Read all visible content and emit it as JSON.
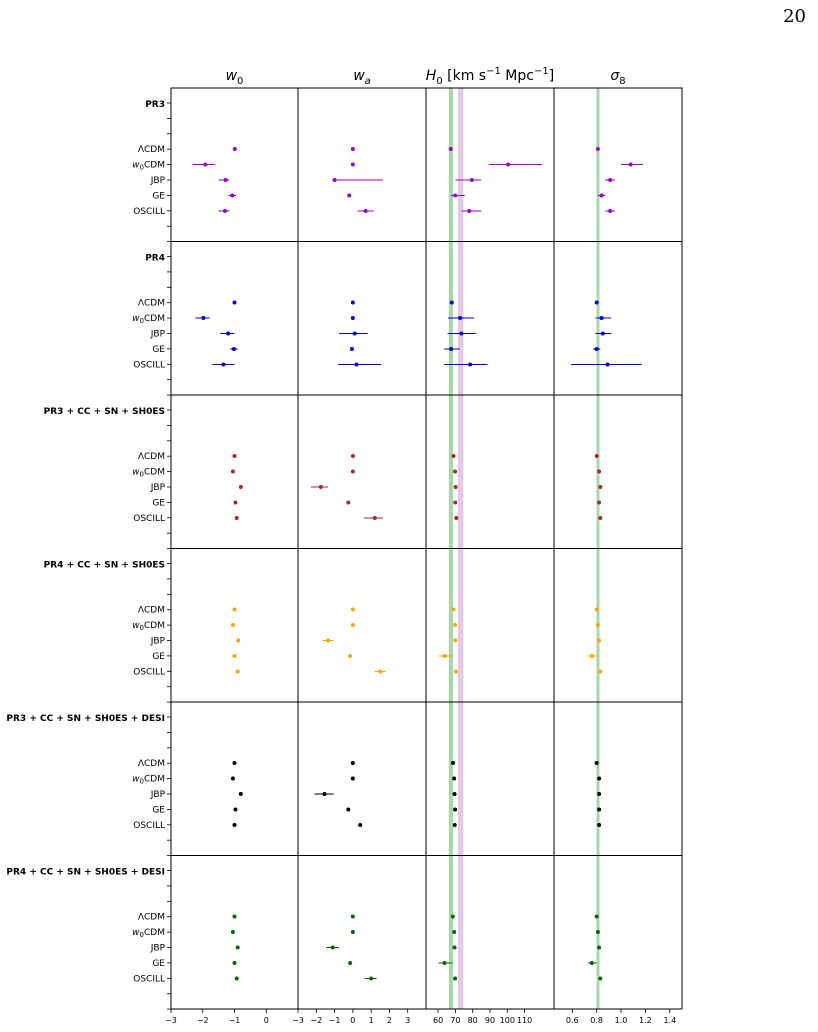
{
  "page_number": "20",
  "chart_data": {
    "type": "scatter",
    "subtype": "forest-plot with horizontal error bars",
    "columns": [
      {
        "key": "w0",
        "title": "w_0",
        "xlim": [
          -3,
          1
        ],
        "ticks": [
          -3,
          -2,
          -1,
          0
        ],
        "tick_labels": [
          "-3",
          "-2",
          "-1",
          "0"
        ]
      },
      {
        "key": "wa",
        "title": "w_a",
        "xlim": [
          -3,
          4
        ],
        "ticks": [
          -3,
          -2,
          -1,
          0,
          1,
          2,
          3
        ],
        "tick_labels": [
          "-3",
          "-2",
          "-1",
          "0",
          "1",
          "2",
          "3"
        ]
      },
      {
        "key": "H0",
        "title": "H_0 [km s^-1 Mpc^-1]",
        "xlim": [
          53,
          127
        ],
        "ticks": [
          60,
          70,
          80,
          90,
          100,
          110
        ],
        "tick_labels": [
          "60",
          "70",
          "80",
          "90",
          "100",
          "110"
        ],
        "bands": [
          {
            "center": 67.4,
            "half_width": 1.2,
            "color": "#9fd49f"
          },
          {
            "center": 73.0,
            "half_width": 1.6,
            "color": "#e2c2e6"
          }
        ]
      },
      {
        "key": "sigma8",
        "title": "σ_8",
        "xlim": [
          0.45,
          1.5
        ],
        "ticks": [
          0.6,
          0.8,
          1.0,
          1.2,
          1.4
        ],
        "tick_labels": [
          "0.6",
          "0.8",
          "1.0",
          "1.2",
          "1.4"
        ],
        "bands": [
          {
            "center": 0.811,
            "half_width": 0.012,
            "color": "#9fd49f"
          }
        ]
      }
    ],
    "model_labels": [
      "ΛCDM",
      "w0CDM",
      "JBP",
      "GE",
      "OSCILL"
    ],
    "groups": [
      {
        "name": "PR3",
        "color": "#9400d3",
        "values": [
          {
            "model": "ΛCDM",
            "w0": [
              -0.99,
              0,
              0
            ],
            "wa": [
              0,
              0,
              0
            ],
            "H0": [
              67.3,
              0.5,
              0.5
            ],
            "sigma8": [
              0.81,
              0.01,
              0.01
            ]
          },
          {
            "model": "w0CDM",
            "w0": [
              -1.92,
              0.4,
              0.3
            ],
            "wa": [
              0,
              0,
              0
            ],
            "H0": [
              100.5,
              11,
              19.5
            ],
            "sigma8": [
              1.08,
              0.08,
              0.1
            ]
          },
          {
            "model": "JBP",
            "w0": [
              -1.28,
              0.22,
              0.12
            ],
            "wa": [
              -1.0,
              0,
              2.65
            ],
            "H0": [
              79.5,
              9.5,
              5.5
            ],
            "sigma8": [
              0.91,
              0.04,
              0.04
            ]
          },
          {
            "model": "GE",
            "w0": [
              -1.07,
              0.12,
              0.12
            ],
            "wa": [
              -0.2,
              0,
              0
            ],
            "H0": [
              69.9,
              2.5,
              5.5
            ],
            "sigma8": [
              0.84,
              0.03,
              0.03
            ]
          },
          {
            "model": "OSCILL",
            "w0": [
              -1.3,
              0.2,
              0.15
            ],
            "wa": [
              0.7,
              0.45,
              0.45
            ],
            "H0": [
              78.0,
              4.5,
              7.0
            ],
            "sigma8": [
              0.91,
              0.04,
              0.04
            ]
          }
        ]
      },
      {
        "name": "PR4",
        "color": "#0000cd",
        "values": [
          {
            "model": "ΛCDM",
            "w0": [
              -1.0,
              0,
              0
            ],
            "wa": [
              0,
              0,
              0
            ],
            "H0": [
              67.9,
              0.5,
              0.5
            ],
            "sigma8": [
              0.8,
              0.01,
              0.01
            ]
          },
          {
            "model": "w0CDM",
            "w0": [
              -1.98,
              0.25,
              0.2
            ],
            "wa": [
              0,
              0,
              0
            ],
            "H0": [
              72.7,
              7.0,
              8.0
            ],
            "sigma8": [
              0.84,
              0.05,
              0.08
            ]
          },
          {
            "model": "JBP",
            "w0": [
              -1.2,
              0.25,
              0.2
            ],
            "wa": [
              0.1,
              0.85,
              0.7
            ],
            "H0": [
              73.5,
              8.0,
              8.5
            ],
            "sigma8": [
              0.85,
              0.06,
              0.07
            ]
          },
          {
            "model": "GE",
            "w0": [
              -1.02,
              0.12,
              0.12
            ],
            "wa": [
              -0.05,
              0,
              0
            ],
            "H0": [
              67.5,
              4.0,
              5.0
            ],
            "sigma8": [
              0.8,
              0.03,
              0.03
            ]
          },
          {
            "model": "OSCILL",
            "w0": [
              -1.35,
              0.35,
              0.35
            ],
            "wa": [
              0.2,
              1.0,
              1.35
            ],
            "H0": [
              78.5,
              15.0,
              10.0
            ],
            "sigma8": [
              0.89,
              0.3,
              0.28
            ]
          }
        ]
      },
      {
        "name": "PR3 + CC + SN + SH0ES",
        "color": "#a52a2a",
        "values": [
          {
            "model": "ΛCDM",
            "w0": [
              -1.0,
              0,
              0
            ],
            "wa": [
              0,
              0,
              0
            ],
            "H0": [
              68.9,
              0,
              0
            ],
            "sigma8": [
              0.8,
              0,
              0
            ]
          },
          {
            "model": "w0CDM",
            "w0": [
              -1.05,
              0,
              0
            ],
            "wa": [
              0,
              0,
              0
            ],
            "H0": [
              69.8,
              0,
              0
            ],
            "sigma8": [
              0.82,
              0,
              0
            ]
          },
          {
            "model": "JBP",
            "w0": [
              -0.8,
              0,
              0
            ],
            "wa": [
              -1.75,
              0.55,
              0.4
            ],
            "H0": [
              70.1,
              0,
              0
            ],
            "sigma8": [
              0.83,
              0,
              0
            ]
          },
          {
            "model": "GE",
            "w0": [
              -0.97,
              0,
              0
            ],
            "wa": [
              -0.25,
              0,
              0
            ],
            "H0": [
              69.9,
              0,
              0
            ],
            "sigma8": [
              0.82,
              0,
              0
            ]
          },
          {
            "model": "OSCILL",
            "w0": [
              -0.93,
              0,
              0
            ],
            "wa": [
              1.2,
              0.6,
              0.45
            ],
            "H0": [
              70.5,
              0,
              0
            ],
            "sigma8": [
              0.83,
              0,
              0
            ]
          }
        ]
      },
      {
        "name": "PR4 + CC + SN + SH0ES",
        "color": "#ffa500",
        "values": [
          {
            "model": "ΛCDM",
            "w0": [
              -1.0,
              0,
              0
            ],
            "wa": [
              0,
              0,
              0
            ],
            "H0": [
              68.9,
              0,
              0
            ],
            "sigma8": [
              0.8,
              0,
              0
            ]
          },
          {
            "model": "w0CDM",
            "w0": [
              -1.05,
              0,
              0
            ],
            "wa": [
              0,
              0,
              0
            ],
            "H0": [
              69.8,
              0,
              0
            ],
            "sigma8": [
              0.81,
              0,
              0
            ]
          },
          {
            "model": "JBP",
            "w0": [
              -0.88,
              0,
              0
            ],
            "wa": [
              -1.35,
              0.3,
              0.3
            ],
            "H0": [
              70.0,
              0,
              0
            ],
            "sigma8": [
              0.82,
              0,
              0
            ]
          },
          {
            "model": "GE",
            "w0": [
              -1.0,
              0,
              0
            ],
            "wa": [
              -0.15,
              0,
              0
            ],
            "H0": [
              63.8,
              3.5,
              4.5
            ],
            "sigma8": [
              0.76,
              0.04,
              0.04
            ]
          },
          {
            "model": "OSCILL",
            "w0": [
              -0.9,
              0,
              0
            ],
            "wa": [
              1.5,
              0.3,
              0.3
            ],
            "H0": [
              70.3,
              0,
              0
            ],
            "sigma8": [
              0.83,
              0,
              0
            ]
          }
        ]
      },
      {
        "name": "PR3 + CC + SN + SH0ES + DESI",
        "color": "#000000",
        "values": [
          {
            "model": "ΛCDM",
            "w0": [
              -1.0,
              0,
              0
            ],
            "wa": [
              0,
              0,
              0
            ],
            "H0": [
              68.6,
              0,
              0
            ],
            "sigma8": [
              0.8,
              0,
              0
            ]
          },
          {
            "model": "w0CDM",
            "w0": [
              -1.05,
              0,
              0
            ],
            "wa": [
              0,
              0,
              0
            ],
            "H0": [
              69.3,
              0,
              0
            ],
            "sigma8": [
              0.82,
              0,
              0
            ]
          },
          {
            "model": "JBP",
            "w0": [
              -0.8,
              0,
              0
            ],
            "wa": [
              -1.55,
              0.55,
              0.5
            ],
            "H0": [
              69.5,
              0,
              0
            ],
            "sigma8": [
              0.82,
              0,
              0
            ]
          },
          {
            "model": "GE",
            "w0": [
              -0.97,
              0,
              0
            ],
            "wa": [
              -0.25,
              0,
              0
            ],
            "H0": [
              69.8,
              0,
              0
            ],
            "sigma8": [
              0.82,
              0,
              0
            ]
          },
          {
            "model": "OSCILL",
            "w0": [
              -1.0,
              0,
              0
            ],
            "wa": [
              0.4,
              0,
              0
            ],
            "H0": [
              69.6,
              0,
              0
            ],
            "sigma8": [
              0.82,
              0,
              0
            ]
          }
        ]
      },
      {
        "name": "PR4 + CC + SN + SH0ES + DESI",
        "color": "#006400",
        "values": [
          {
            "model": "ΛCDM",
            "w0": [
              -1.0,
              0,
              0
            ],
            "wa": [
              0,
              0,
              0
            ],
            "H0": [
              68.5,
              0,
              0
            ],
            "sigma8": [
              0.8,
              0,
              0
            ]
          },
          {
            "model": "w0CDM",
            "w0": [
              -1.05,
              0,
              0
            ],
            "wa": [
              0,
              0,
              0
            ],
            "H0": [
              69.3,
              0,
              0
            ],
            "sigma8": [
              0.81,
              0,
              0
            ]
          },
          {
            "model": "JBP",
            "w0": [
              -0.9,
              0,
              0
            ],
            "wa": [
              -1.1,
              0.35,
              0.35
            ],
            "H0": [
              69.5,
              0,
              0
            ],
            "sigma8": [
              0.82,
              0,
              0
            ]
          },
          {
            "model": "GE",
            "w0": [
              -1.0,
              0,
              0
            ],
            "wa": [
              -0.15,
              0,
              0
            ],
            "H0": [
              63.7,
              3.5,
              4.5
            ],
            "sigma8": [
              0.76,
              0.03,
              0.04
            ]
          },
          {
            "model": "OSCILL",
            "w0": [
              -0.93,
              0,
              0
            ],
            "wa": [
              1.0,
              0.35,
              0.3
            ],
            "H0": [
              69.8,
              0,
              0
            ],
            "sigma8": [
              0.83,
              0,
              0
            ]
          }
        ]
      }
    ]
  }
}
